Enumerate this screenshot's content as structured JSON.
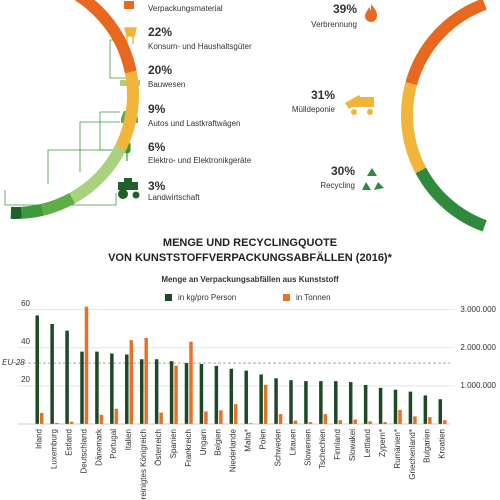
{
  "chart_data": [
    {
      "type": "donut",
      "categories": [
        "Verpackungsmaterial",
        "Konsum- und Haushaltsgüter",
        "Bauwesen",
        "Autos und Lastkraftwägen",
        "Elektro- und Elektronikgeräte",
        "Landwirtschaft"
      ],
      "values": [
        40,
        22,
        20,
        9,
        6,
        3
      ],
      "value_labels": [
        null,
        "22%",
        "20%",
        "9%",
        "6%",
        "3%"
      ],
      "colors": [
        "#e8681f",
        "#f2b53c",
        "#a9d17f",
        "#5fae45",
        "#3d9a3a",
        "#1f5f2c"
      ]
    },
    {
      "type": "donut",
      "categories": [
        "Verbrennung",
        "Mülldeponie",
        "Recycling"
      ],
      "values": [
        39,
        31,
        30
      ],
      "value_labels": [
        "39%",
        "31%",
        "30%"
      ],
      "colors": [
        "#e8681f",
        "#f2b53c",
        "#2f8a3e"
      ]
    },
    {
      "type": "bar",
      "title": [
        "MENGE UND RECYCLINGQUOTE",
        "VON KUNSTSTOFFVERPACKUNGSABFÄLLEN (2016)*"
      ],
      "subtitle": "Menge an Verpackungsabfällen aus Kunststoff",
      "categories": [
        "Irland",
        "Luxemburg",
        "Estland",
        "Deutschland",
        "Dänemark",
        "Portugal",
        "Italien",
        "Vereinigtes Königreich",
        "Österreich",
        "Spanien",
        "Frankreich",
        "Ungarn",
        "Belgien",
        "Niederlande",
        "Malta*",
        "Polen",
        "Schweden",
        "Litauen",
        "Slowenien",
        "Tschechien",
        "Finnland",
        "Slowakei",
        "Lettland",
        "Zypern*",
        "Rumänien*",
        "Griechenland*",
        "Bulgarien",
        "Kroatien"
      ],
      "series": [
        {
          "name": "in kg/pro Person",
          "color": "#1d4a25",
          "values": [
            57,
            52.5,
            49,
            38,
            38,
            37,
            36.5,
            34,
            34,
            33,
            32,
            31.5,
            30.5,
            29,
            28,
            26,
            24,
            23,
            22.5,
            22.5,
            22.5,
            22,
            20.5,
            19,
            18,
            17,
            15,
            13
          ]
        },
        {
          "name": "in Tonnen",
          "color": "#e8712a",
          "axis": "y2",
          "values": [
            290000,
            30000,
            60000,
            3080000,
            240000,
            400000,
            2200000,
            2260000,
            300000,
            1530000,
            2160000,
            330000,
            360000,
            520000,
            20000,
            1030000,
            260000,
            90000,
            50000,
            260000,
            100000,
            120000,
            70000,
            50000,
            370000,
            200000,
            180000,
            100000
          ]
        }
      ],
      "reference_line": {
        "label": "EU-28",
        "value": 32
      },
      "ylim": [
        0,
        63
      ],
      "yticks": [
        20,
        40,
        60
      ],
      "y2lim": [
        0,
        3150000
      ],
      "y2ticks": [
        {
          "value": 1000000,
          "label": "1.000.000"
        },
        {
          "value": 2000000,
          "label": "2.000.000"
        },
        {
          "value": 3000000,
          "label": "3.000.000"
        }
      ],
      "grid": true
    }
  ]
}
